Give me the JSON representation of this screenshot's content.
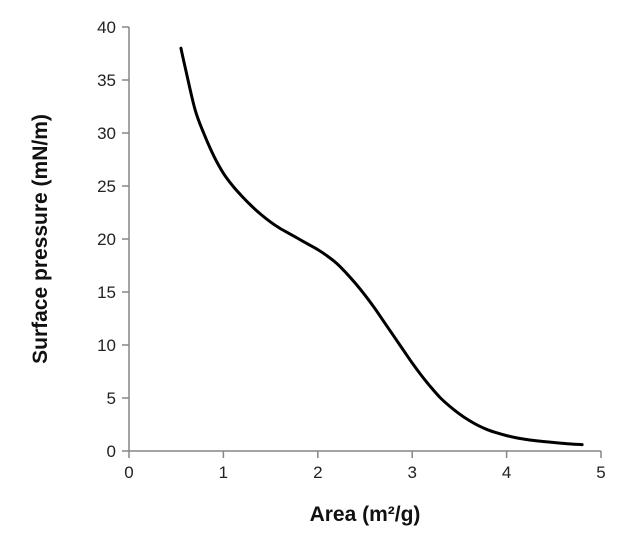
{
  "chart_data": {
    "type": "line",
    "title": "",
    "xlabel": "Area (m²/g)",
    "ylabel": "Surface pressure (mN/m)",
    "xlim": [
      0,
      5
    ],
    "ylim": [
      0,
      40
    ],
    "x_ticks": [
      0,
      1,
      2,
      3,
      4,
      5
    ],
    "y_ticks": [
      0,
      5,
      10,
      15,
      20,
      25,
      30,
      35,
      40
    ],
    "grid": false,
    "legend": "none",
    "series": [
      {
        "color": "#000000",
        "x": [
          0.55,
          0.6,
          0.7,
          0.8,
          0.9,
          1.0,
          1.1,
          1.2,
          1.3,
          1.4,
          1.5,
          1.6,
          1.7,
          1.8,
          1.9,
          2.0,
          2.1,
          2.2,
          2.3,
          2.4,
          2.5,
          2.6,
          2.7,
          2.8,
          2.9,
          3.0,
          3.1,
          3.2,
          3.3,
          3.4,
          3.5,
          3.6,
          3.7,
          3.8,
          3.9,
          4.0,
          4.1,
          4.2,
          4.3,
          4.4,
          4.5,
          4.6,
          4.7,
          4.8
        ],
        "y": [
          38.0,
          36.0,
          32.2,
          29.8,
          27.8,
          26.2,
          25.0,
          24.0,
          23.1,
          22.3,
          21.6,
          21.0,
          20.5,
          20.0,
          19.5,
          19.0,
          18.4,
          17.7,
          16.8,
          15.8,
          14.7,
          13.5,
          12.2,
          10.9,
          9.6,
          8.3,
          7.1,
          6.0,
          5.0,
          4.2,
          3.5,
          2.9,
          2.4,
          2.0,
          1.7,
          1.45,
          1.25,
          1.1,
          0.98,
          0.88,
          0.8,
          0.72,
          0.65,
          0.6
        ]
      }
    ]
  }
}
